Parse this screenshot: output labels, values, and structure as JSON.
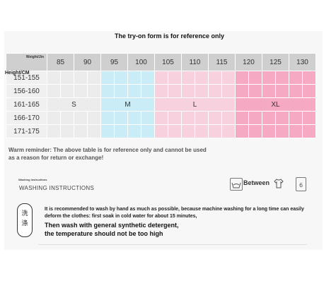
{
  "title": "The try-on form is for reference only",
  "table": {
    "weight_label": "Weight/Jin",
    "height_label": "Height/CM",
    "weights": [
      "85",
      "90",
      "95",
      "100",
      "105",
      "110",
      "115",
      "120",
      "125",
      "130"
    ],
    "heights": [
      "151-155",
      "156-160",
      "161-165",
      "166-170",
      "171-175"
    ],
    "sizes": [
      "S",
      "M",
      "L",
      "XL"
    ],
    "colors": {
      "S": "#ececec",
      "M": "#c9ecf6",
      "L": "#f7d2de",
      "XL": "#f5a9c2"
    }
  },
  "warm_reminder": "Warm reminder: The above table is for reference only and cannot be used as a reason for return or exchange!",
  "washing": {
    "small_title": "Washing instructions",
    "title": "WASHING INSTRUCTIONS",
    "between_label": "Between",
    "seal_chars": [
      "洗",
      "涤"
    ],
    "paragraph": "It is recommended to wash by hand as much as possible, because machine washing for a long time can easily deform the clothes: first soak in cold water for about 15 minutes,",
    "paragraph2": "Then wash with general synthetic detergent, the temperature should not be too high"
  }
}
